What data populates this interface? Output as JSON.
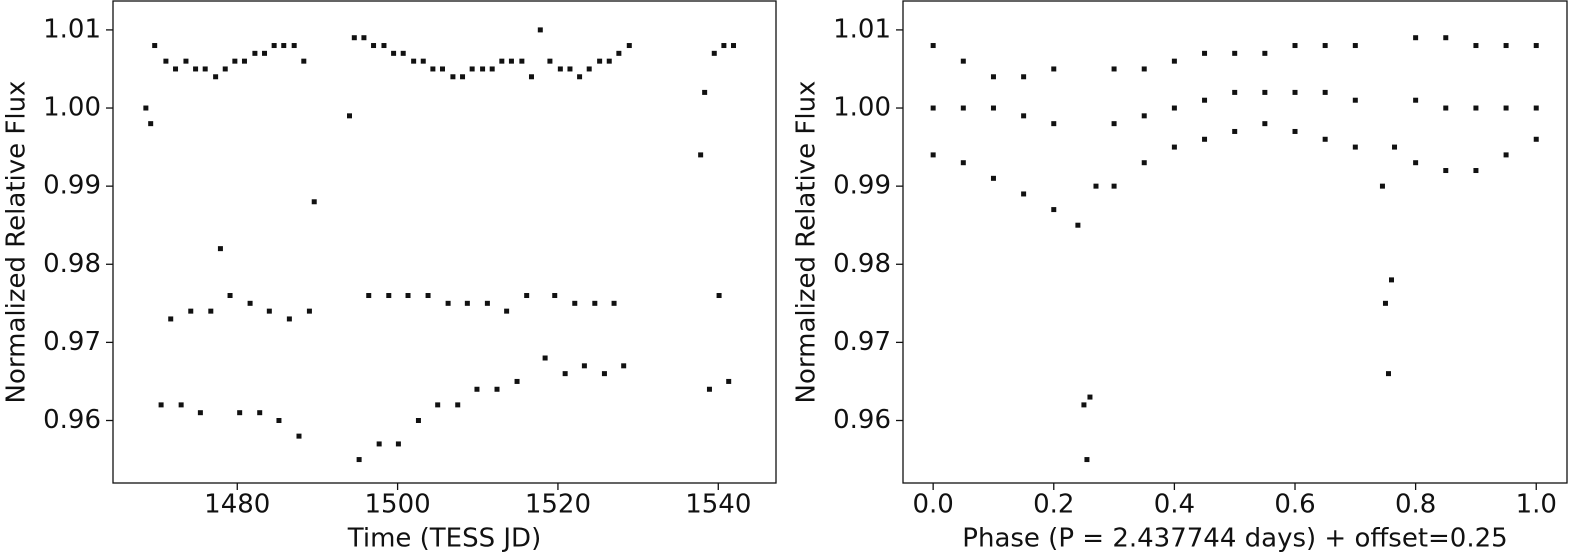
{
  "chart_data": [
    {
      "type": "scatter",
      "xlabel": "Time (TESS JD)",
      "ylabel": "Normalized Relative Flux",
      "color": "#111111",
      "xlim": [
        1464.5,
        1547.2
      ],
      "ylim": [
        0.952,
        1.0137
      ],
      "xticks": [
        1480,
        1500,
        1520,
        1540
      ],
      "yticks": [
        0.96,
        0.97,
        0.98,
        0.99,
        {
          "value": 1,
          "label": "1.00"
        },
        1.01
      ],
      "x": [
        1468.6,
        1469.2,
        1469.7,
        1470.5,
        1471.1,
        1471.7,
        1472.3,
        1473.0,
        1473.6,
        1474.2,
        1474.8,
        1475.4,
        1476.0,
        1476.7,
        1477.3,
        1477.9,
        1478.5,
        1479.1,
        1479.7,
        1480.3,
        1480.9,
        1481.6,
        1482.2,
        1482.8,
        1483.4,
        1484.0,
        1484.6,
        1485.2,
        1485.8,
        1486.5,
        1487.1,
        1487.7,
        1488.3,
        1489.0,
        1489.6,
        1494.0,
        1494.6,
        1495.2,
        1495.8,
        1496.4,
        1497.0,
        1497.7,
        1498.3,
        1498.9,
        1499.5,
        1500.1,
        1500.7,
        1501.3,
        1502.0,
        1502.6,
        1503.2,
        1503.8,
        1504.4,
        1505.0,
        1505.6,
        1506.3,
        1506.9,
        1507.5,
        1508.1,
        1508.7,
        1509.3,
        1509.9,
        1510.6,
        1511.2,
        1511.8,
        1512.4,
        1513.0,
        1513.6,
        1514.2,
        1514.9,
        1515.5,
        1516.1,
        1516.7,
        1517.8,
        1518.4,
        1519.0,
        1519.6,
        1520.3,
        1520.9,
        1521.5,
        1522.1,
        1522.7,
        1523.3,
        1523.9,
        1524.6,
        1525.2,
        1525.8,
        1526.4,
        1527.0,
        1527.6,
        1528.2,
        1528.9,
        1537.8,
        1538.3,
        1538.9,
        1539.5,
        1540.1,
        1540.7,
        1541.3,
        1541.9
      ],
      "values": [
        1.0,
        0.998,
        1.008,
        0.962,
        1.006,
        0.973,
        1.005,
        0.962,
        1.006,
        0.974,
        1.005,
        0.961,
        1.005,
        0.974,
        1.004,
        0.982,
        1.005,
        0.976,
        1.006,
        0.961,
        1.006,
        0.975,
        1.007,
        0.961,
        1.007,
        0.974,
        1.008,
        0.96,
        1.008,
        0.973,
        1.008,
        0.958,
        1.006,
        0.974,
        0.988,
        0.999,
        1.009,
        0.955,
        1.009,
        0.976,
        1.008,
        0.957,
        1.008,
        0.976,
        1.007,
        0.957,
        1.007,
        0.976,
        1.006,
        0.96,
        1.006,
        0.976,
        1.005,
        0.962,
        1.005,
        0.975,
        1.004,
        0.962,
        1.004,
        0.975,
        1.005,
        0.964,
        1.005,
        0.975,
        1.005,
        0.964,
        1.006,
        0.974,
        1.006,
        0.965,
        1.006,
        0.976,
        1.004,
        1.01,
        0.968,
        1.006,
        0.976,
        1.005,
        0.966,
        1.005,
        0.975,
        1.004,
        0.967,
        1.005,
        0.975,
        1.006,
        0.966,
        1.006,
        0.975,
        1.007,
        0.967,
        1.008,
        0.994,
        1.002,
        0.964,
        1.007,
        0.976,
        1.008,
        0.965,
        1.008
      ]
    },
    {
      "type": "scatter",
      "xlabel": "Phase (P = 2.437744 days) + offset=0.25",
      "ylabel": "Normalized Relative Flux",
      "color": "#111111",
      "xlim": [
        -0.05,
        1.051
      ],
      "ylim": [
        0.952,
        1.0137
      ],
      "xticks": [
        {
          "value": 0,
          "label": "0.0"
        },
        0.2,
        0.4,
        0.6,
        0.8,
        {
          "value": 1,
          "label": "1.0"
        }
      ],
      "yticks": [
        0.96,
        0.97,
        0.98,
        0.99,
        {
          "value": 1,
          "label": "1.00"
        },
        1.01
      ],
      "x": [
        0.0,
        0.0,
        0.0,
        0.05,
        0.05,
        0.05,
        0.1,
        0.1,
        0.1,
        0.15,
        0.15,
        0.15,
        0.2,
        0.2,
        0.2,
        0.24,
        0.25,
        0.255,
        0.26,
        0.27,
        0.3,
        0.3,
        0.3,
        0.35,
        0.35,
        0.35,
        0.4,
        0.4,
        0.4,
        0.45,
        0.45,
        0.45,
        0.5,
        0.5,
        0.5,
        0.55,
        0.55,
        0.55,
        0.6,
        0.6,
        0.6,
        0.65,
        0.65,
        0.65,
        0.7,
        0.7,
        0.7,
        0.745,
        0.75,
        0.755,
        0.76,
        0.765,
        0.8,
        0.8,
        0.8,
        0.85,
        0.85,
        0.85,
        0.9,
        0.9,
        0.9,
        0.95,
        0.95,
        0.95,
        1.0,
        1.0,
        1.0
      ],
      "values": [
        1.008,
        1.0,
        0.994,
        1.006,
        1.0,
        0.993,
        1.004,
        1.0,
        0.991,
        1.004,
        0.999,
        0.989,
        1.005,
        0.998,
        0.987,
        0.985,
        0.962,
        0.955,
        0.963,
        0.99,
        1.005,
        0.998,
        0.99,
        1.005,
        0.999,
        0.993,
        1.006,
        1.0,
        0.995,
        1.007,
        1.001,
        0.996,
        1.007,
        1.002,
        0.997,
        1.007,
        1.002,
        0.998,
        1.008,
        1.002,
        0.997,
        1.008,
        1.002,
        0.996,
        1.008,
        1.001,
        0.995,
        0.99,
        0.975,
        0.966,
        0.978,
        0.995,
        1.009,
        1.001,
        0.993,
        1.009,
        1.0,
        0.992,
        1.008,
        1.0,
        0.992,
        1.008,
        1.0,
        0.994,
        1.008,
        1.0,
        0.996
      ]
    }
  ]
}
